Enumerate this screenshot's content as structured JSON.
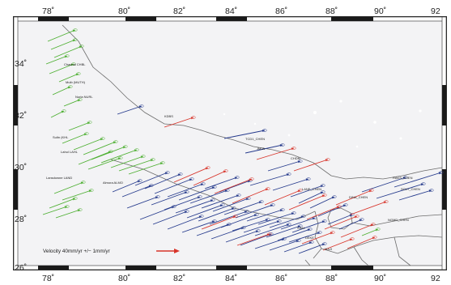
{
  "map": {
    "lon_ticks": [
      "78˚",
      "80˚",
      "82˚",
      "84˚",
      "86˚",
      "88˚",
      "90˚",
      "92"
    ],
    "lat_ticks": [
      "34˚",
      "32˚",
      "30˚",
      "28˚",
      "26˚"
    ],
    "legend_text": "Velocity 40mm/yr +/− 1mm/yr",
    "colors": {
      "green": "#4caf30",
      "blue": "#253a8c",
      "red": "#d8342a",
      "border": "#6c6c6c",
      "land": "#f3f3f5"
    }
  },
  "sites": [
    {
      "label": "Chachal CHBL"
    },
    {
      "label": "Mulb (MUTH)"
    },
    {
      "label": "Nurla NURL"
    },
    {
      "label": "Sultn (KHL"
    },
    {
      "label": "Lahul LAHL"
    },
    {
      "label": "Lansdowne LAND"
    },
    {
      "label": "Almora ALMO"
    },
    {
      "label": "KDBS"
    },
    {
      "label": "TCD1_CHEN"
    },
    {
      "label": "JMJA"
    },
    {
      "label": "CHDM"
    },
    {
      "label": "LANE_CHEN"
    },
    {
      "label": "DINA_CHEN"
    },
    {
      "label": "RAKS_CHEN"
    },
    {
      "label": "SOLY_CHEN"
    },
    {
      "label": "NGMD_CHEN"
    },
    {
      "label": "SIM4"
    },
    {
      "label": "DEKE"
    },
    {
      "label": "MAJI"
    }
  ]
}
